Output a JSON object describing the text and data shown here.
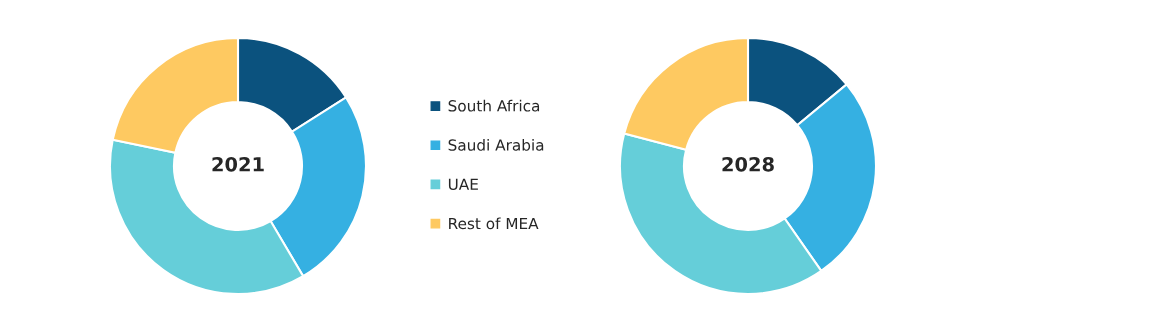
{
  "chart_data": [
    {
      "type": "donut",
      "title": "2021",
      "categories": [
        "South Africa",
        "Saudi Arabia",
        "UAE",
        "Rest of MEA"
      ],
      "values": [
        16,
        25.5,
        36.8,
        21.7
      ],
      "colors": [
        "#0b527e",
        "#35b0e2",
        "#65ced9",
        "#fec961"
      ],
      "legend": "right"
    },
    {
      "type": "donut",
      "title": "2028",
      "categories": [
        null,
        null,
        null,
        null
      ],
      "values": [
        14,
        26.3,
        38.8,
        20.9
      ],
      "colors": [
        "#0b527e",
        "#35b0e2",
        "#65ced9",
        "#fec961"
      ]
    }
  ]
}
